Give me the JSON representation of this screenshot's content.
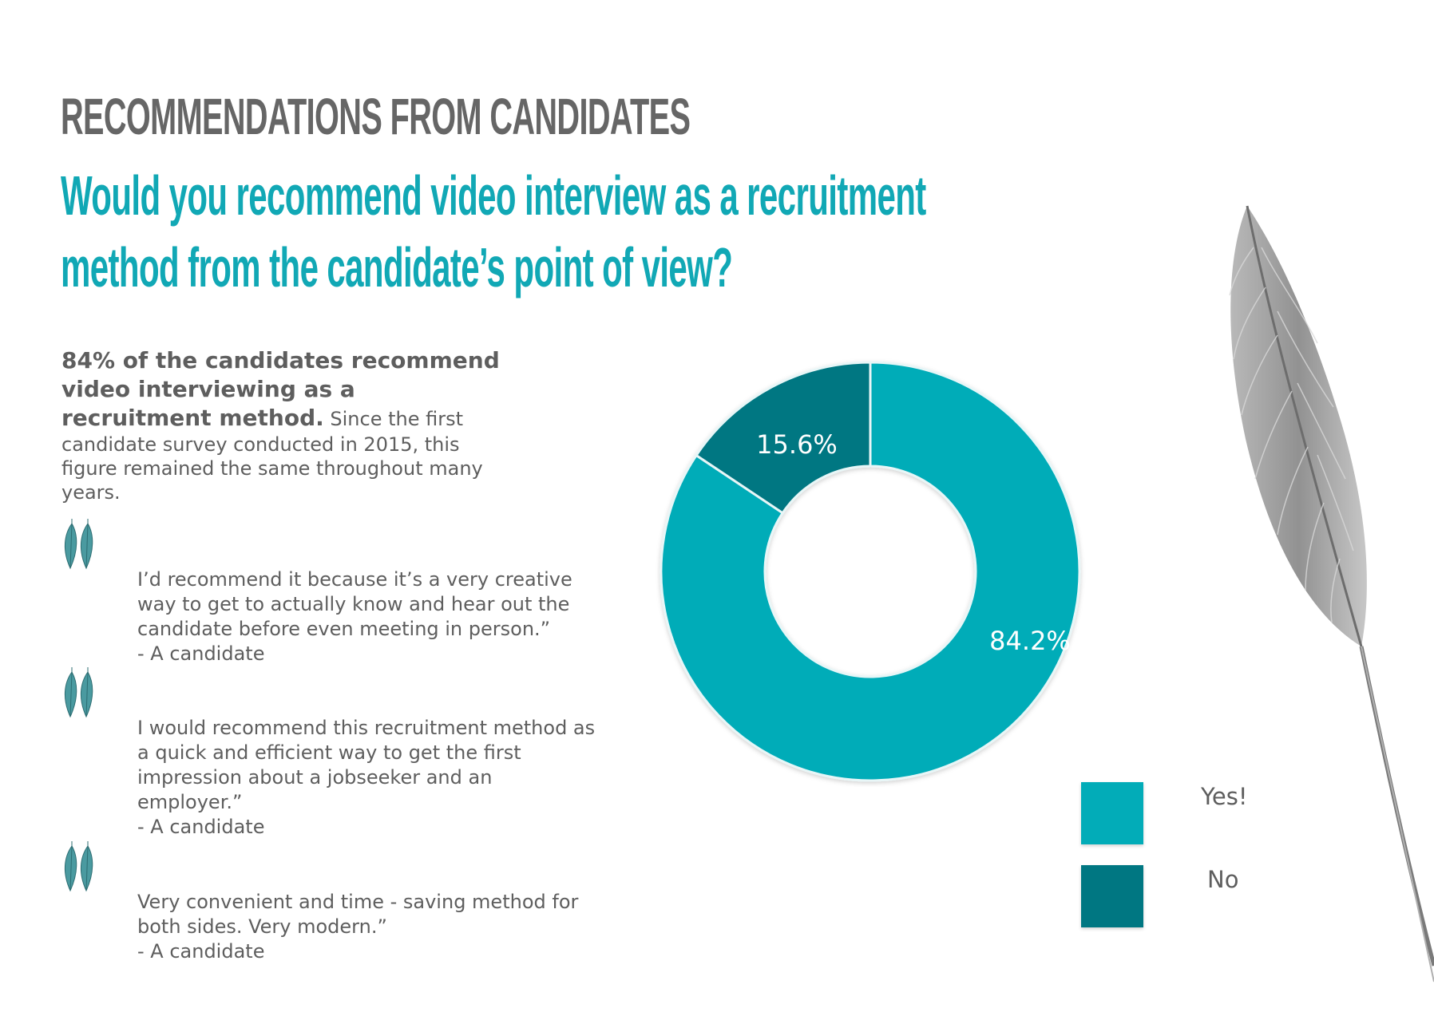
{
  "heading": "RECOMMENDATIONS FROM CANDIDATES",
  "question": {
    "line1": "Would you recommend video interview as a recruitment",
    "line2": "method from the candidate’s point of view?"
  },
  "summary": {
    "bold": "84% of the candidates recommend video interviewing as a recruitment method.",
    "text": " Since the first candidate survey conducted in 2015, this figure remained the same throughout many years."
  },
  "quotes": [
    {
      "text": "I’d recommend it because it’s a very creative way to get to actually know and hear out the candidate before even meeting in person.”",
      "author": "- A candidate"
    },
    {
      "text": " I would recommend this recruitment method as a quick and efficient way to get the first impression about a jobseeker and an employer.”",
      "author": "- A candidate"
    },
    {
      "text": " Very convenient and time - saving method for both sides. Very modern.”",
      "author": "- A candidate"
    }
  ],
  "icons": {
    "quote": "leaf-quote-icon",
    "decoration": "feather-icon"
  },
  "colors": {
    "heading": "#666666",
    "accent": "#11a8b5",
    "yes": "#02acb8",
    "no": "#007782",
    "text": "#5e5e5e"
  },
  "chart_data": {
    "type": "pie",
    "variant": "donut",
    "categories": [
      "Yes!",
      "No"
    ],
    "values": [
      84.2,
      15.6
    ],
    "labels": [
      "84.2%",
      "15.6%"
    ],
    "colors": [
      "#02acb8",
      "#007782"
    ],
    "legend": {
      "placement": "bottom-right",
      "entries": [
        "Yes!",
        "No"
      ]
    }
  }
}
